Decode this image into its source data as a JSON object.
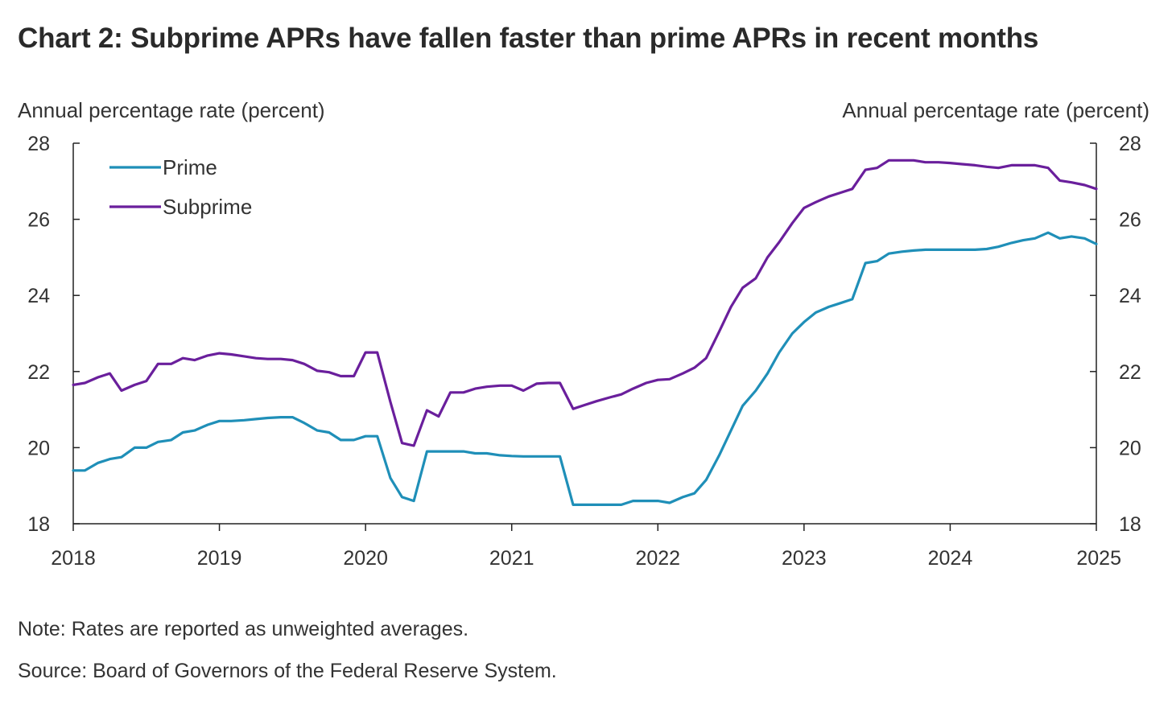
{
  "title": "Chart 2: Subprime APRs have fallen faster than prime APRs in recent months",
  "note": "Note: Rates are reported as unweighted averages.",
  "source": "Source: Board of Governors of the Federal Reserve System.",
  "chart_data": {
    "type": "line",
    "title": "Chart 2: Subprime APRs have fallen faster than prime APRs in recent months",
    "ylabel_left": "Annual percentage rate (percent)",
    "ylabel_right": "Annual percentage rate (percent)",
    "xlabel": "",
    "xlim": [
      2018,
      2025
    ],
    "ylim": [
      18,
      28
    ],
    "x_ticks": [
      "2018",
      "2019",
      "2020",
      "2021",
      "2022",
      "2023",
      "2024",
      "2025"
    ],
    "y_ticks": [
      "18",
      "20",
      "22",
      "24",
      "26",
      "28"
    ],
    "grid": false,
    "legend_position": "top-left",
    "series": [
      {
        "name": "Prime",
        "color": "#1f8fb8",
        "x": [
          2018.0,
          2018.08,
          2018.17,
          2018.25,
          2018.33,
          2018.42,
          2018.5,
          2018.58,
          2018.67,
          2018.75,
          2018.83,
          2018.92,
          2019.0,
          2019.08,
          2019.17,
          2019.25,
          2019.33,
          2019.42,
          2019.5,
          2019.58,
          2019.67,
          2019.75,
          2019.83,
          2019.92,
          2020.0,
          2020.08,
          2020.17,
          2020.25,
          2020.33,
          2020.42,
          2020.5,
          2020.58,
          2020.67,
          2020.75,
          2020.83,
          2020.92,
          2021.0,
          2021.08,
          2021.17,
          2021.25,
          2021.33,
          2021.42,
          2021.5,
          2021.58,
          2021.67,
          2021.75,
          2021.83,
          2021.92,
          2022.0,
          2022.08,
          2022.17,
          2022.25,
          2022.33,
          2022.42,
          2022.5,
          2022.58,
          2022.67,
          2022.75,
          2022.83,
          2022.92,
          2023.0,
          2023.08,
          2023.17,
          2023.25,
          2023.33,
          2023.42,
          2023.5,
          2023.58,
          2023.67,
          2023.75,
          2023.83,
          2023.92,
          2024.0,
          2024.08,
          2024.17,
          2024.25,
          2024.33,
          2024.42,
          2024.5,
          2024.58,
          2024.67,
          2024.75,
          2024.83,
          2024.92,
          2025.0
        ],
        "values": [
          19.4,
          19.4,
          19.6,
          19.7,
          19.75,
          20.0,
          20.0,
          20.15,
          20.2,
          20.4,
          20.45,
          20.6,
          20.7,
          20.7,
          20.72,
          20.75,
          20.78,
          20.8,
          20.8,
          20.65,
          20.45,
          20.4,
          20.2,
          20.2,
          20.3,
          20.3,
          19.2,
          18.7,
          18.6,
          19.9,
          19.9,
          19.9,
          19.9,
          19.85,
          19.85,
          19.8,
          19.78,
          19.77,
          19.77,
          19.77,
          19.77,
          18.5,
          18.5,
          18.5,
          18.5,
          18.5,
          18.6,
          18.6,
          18.6,
          18.55,
          18.7,
          18.8,
          19.15,
          19.8,
          20.45,
          21.1,
          21.5,
          21.95,
          22.5,
          23.0,
          23.3,
          23.55,
          23.7,
          23.8,
          23.9,
          24.85,
          24.9,
          25.1,
          25.15,
          25.18,
          25.2,
          25.2,
          25.2,
          25.2,
          25.2,
          25.22,
          25.28,
          25.38,
          25.45,
          25.5,
          25.65,
          25.5,
          25.55,
          25.5,
          25.35
        ]
      },
      {
        "name": "Subprime",
        "color": "#6a1f9c",
        "x": [
          2018.0,
          2018.08,
          2018.17,
          2018.25,
          2018.33,
          2018.42,
          2018.5,
          2018.58,
          2018.67,
          2018.75,
          2018.83,
          2018.92,
          2019.0,
          2019.08,
          2019.17,
          2019.25,
          2019.33,
          2019.42,
          2019.5,
          2019.58,
          2019.67,
          2019.75,
          2019.83,
          2019.92,
          2020.0,
          2020.08,
          2020.17,
          2020.25,
          2020.33,
          2020.42,
          2020.5,
          2020.58,
          2020.67,
          2020.75,
          2020.83,
          2020.92,
          2021.0,
          2021.08,
          2021.17,
          2021.25,
          2021.33,
          2021.42,
          2021.5,
          2021.58,
          2021.67,
          2021.75,
          2021.83,
          2021.92,
          2022.0,
          2022.08,
          2022.17,
          2022.25,
          2022.33,
          2022.42,
          2022.5,
          2022.58,
          2022.67,
          2022.75,
          2022.83,
          2022.92,
          2023.0,
          2023.08,
          2023.17,
          2023.25,
          2023.33,
          2023.42,
          2023.5,
          2023.58,
          2023.67,
          2023.75,
          2023.83,
          2023.92,
          2024.0,
          2024.08,
          2024.17,
          2024.25,
          2024.33,
          2024.42,
          2024.5,
          2024.58,
          2024.67,
          2024.75,
          2024.83,
          2024.92,
          2025.0
        ],
        "values": [
          21.65,
          21.7,
          21.85,
          21.95,
          21.5,
          21.65,
          21.75,
          22.2,
          22.2,
          22.35,
          22.3,
          22.42,
          22.48,
          22.45,
          22.4,
          22.35,
          22.33,
          22.33,
          22.3,
          22.2,
          22.02,
          21.98,
          21.88,
          21.88,
          22.5,
          22.5,
          21.2,
          20.12,
          20.05,
          20.98,
          20.82,
          21.45,
          21.45,
          21.55,
          21.6,
          21.63,
          21.63,
          21.5,
          21.68,
          21.7,
          21.7,
          21.02,
          21.12,
          21.22,
          21.32,
          21.4,
          21.55,
          21.7,
          21.78,
          21.8,
          21.95,
          22.1,
          22.35,
          23.05,
          23.7,
          24.2,
          24.45,
          25.0,
          25.4,
          25.9,
          26.3,
          26.45,
          26.6,
          26.7,
          26.8,
          27.3,
          27.35,
          27.55,
          27.55,
          27.55,
          27.5,
          27.5,
          27.48,
          27.45,
          27.42,
          27.38,
          27.35,
          27.42,
          27.42,
          27.42,
          27.35,
          27.02,
          26.97,
          26.9,
          26.8
        ]
      }
    ]
  }
}
